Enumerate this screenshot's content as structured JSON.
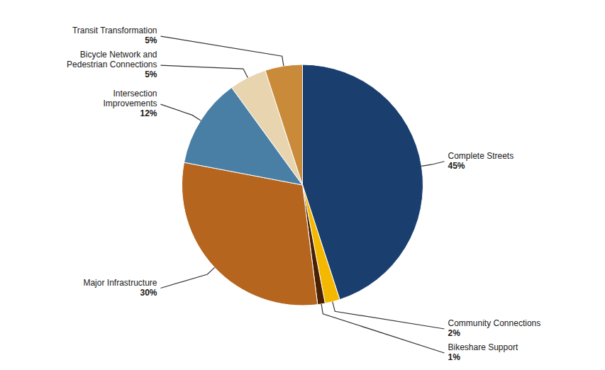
{
  "chart_data": {
    "type": "pie",
    "categories": [
      "Complete Streets",
      "Community Connections",
      "Bikeshare Support",
      "Major Infrastructure",
      "Intersection\nImprovements",
      "Bicycle Network and\nPedestrian Connections",
      "Transit Transformation"
    ],
    "values": [
      45,
      2,
      1,
      30,
      12,
      5,
      5
    ],
    "value_labels": [
      "45%",
      "2%",
      "1%",
      "30%",
      "12%",
      "5%",
      "5%"
    ],
    "colors": [
      "#1a3f6f",
      "#f5b800",
      "#4a2000",
      "#b5651d",
      "#4a7fa5",
      "#e8d5b0",
      "#c98b3a"
    ]
  }
}
